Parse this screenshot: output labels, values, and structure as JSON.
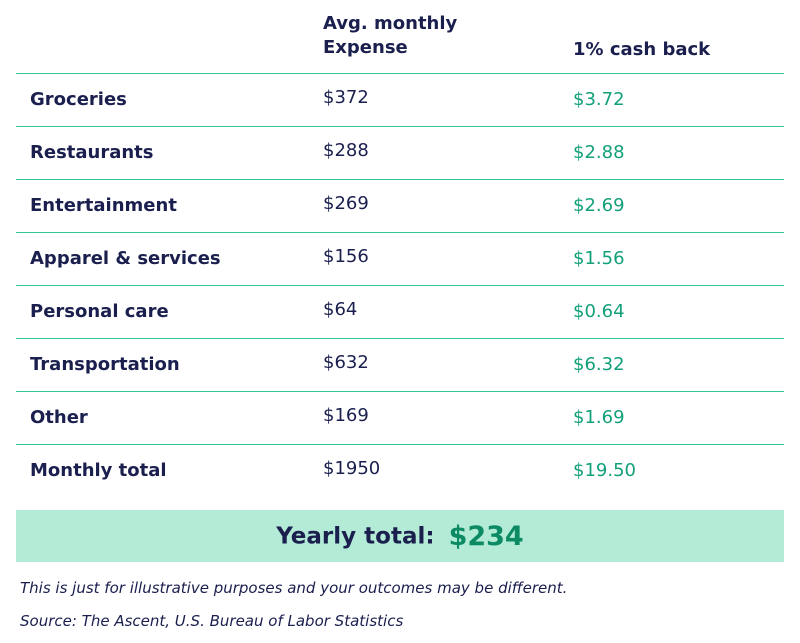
{
  "header": {
    "expense_line1": "Avg. monthly",
    "expense_line2": "Expense",
    "cashback": "1% cash back"
  },
  "rows": [
    {
      "category": "Groceries",
      "expense": "$372",
      "cashback": "$3.72"
    },
    {
      "category": "Restaurants",
      "expense": "$288",
      "cashback": "$2.88"
    },
    {
      "category": "Entertainment",
      "expense": "$269",
      "cashback": "$2.69"
    },
    {
      "category": "Apparel & services",
      "expense": "$156",
      "cashback": "$1.56"
    },
    {
      "category": "Personal care",
      "expense": "$64",
      "cashback": "$0.64"
    },
    {
      "category": "Transportation",
      "expense": "$632",
      "cashback": "$6.32"
    },
    {
      "category": "Other",
      "expense": "$169",
      "cashback": "$1.69"
    },
    {
      "category": "Monthly total",
      "expense": "$1950",
      "cashback": "$19.50"
    }
  ],
  "yearly": {
    "label": "Yearly total:",
    "value": "$234"
  },
  "notes": {
    "disclaimer": "This is just for illustrative purposes and your outcomes may be different.",
    "source": "Source: The Ascent, U.S. Bureau of Labor Statistics"
  },
  "colors": {
    "text_navy": "#1a1f4e",
    "accent_green": "#12a07a",
    "divider": "#2fc79a",
    "highlight_bg": "#b3ebd7"
  }
}
